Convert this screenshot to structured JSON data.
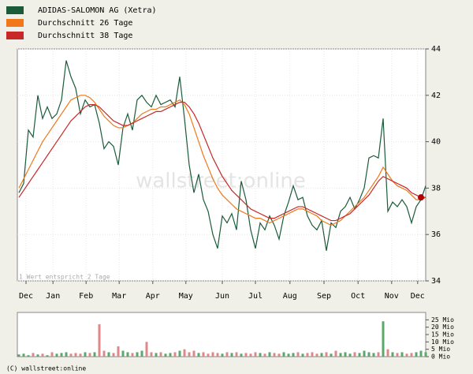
{
  "chart_data": [
    {
      "type": "line",
      "watermark": "wallstreet:online",
      "note": "1 Wert entspricht 2 Tage",
      "copyright": "(C) wallstreet:online",
      "xlim": [
        0,
        86
      ],
      "xticks": [
        {
          "value": 1.5,
          "label": "Dec"
        },
        {
          "value": 7.2,
          "label": "Jan"
        },
        {
          "value": 14.2,
          "label": "Feb"
        },
        {
          "value": 21.2,
          "label": "Mar"
        },
        {
          "value": 28.3,
          "label": "Apr"
        },
        {
          "value": 35.3,
          "label": "May"
        },
        {
          "value": 43,
          "label": "Jun"
        },
        {
          "value": 50,
          "label": "Jul"
        },
        {
          "value": 57.3,
          "label": "Aug"
        },
        {
          "value": 64.5,
          "label": "Sep"
        },
        {
          "value": 71.7,
          "label": "Oct"
        },
        {
          "value": 78.8,
          "label": "Nov"
        },
        {
          "value": 84.3,
          "label": "Dec"
        }
      ],
      "ylim": [
        34,
        44
      ],
      "yticks": [
        34,
        36,
        38,
        40,
        42,
        44
      ],
      "grid": true,
      "series": [
        {
          "name": "ADIDAS-SALOMON AG (Xetra)",
          "color": "#1a5c3a",
          "values": [
            37.8,
            38.2,
            40.5,
            40.2,
            42.0,
            41.0,
            41.5,
            41.0,
            41.2,
            41.8,
            43.5,
            42.8,
            42.3,
            41.2,
            41.8,
            41.5,
            41.6,
            40.8,
            39.7,
            40.0,
            39.8,
            39.0,
            40.6,
            41.2,
            40.5,
            41.8,
            42.0,
            41.7,
            41.5,
            42.0,
            41.6,
            41.7,
            41.8,
            41.5,
            42.8,
            41.0,
            39.0,
            37.8,
            38.6,
            37.5,
            37.0,
            36.0,
            35.4,
            36.8,
            36.5,
            36.9,
            36.2,
            38.3,
            37.5,
            36.2,
            35.4,
            36.5,
            36.2,
            36.8,
            36.4,
            35.8,
            36.8,
            37.4,
            38.1,
            37.5,
            37.6,
            36.8,
            36.4,
            36.2,
            36.6,
            35.3,
            36.5,
            36.3,
            37.0,
            37.2,
            37.6,
            37.1,
            37.5,
            38.0,
            39.3,
            39.4,
            39.3,
            41.0,
            37.0,
            37.4,
            37.2,
            37.5,
            37.2,
            36.5,
            37.2,
            37.5,
            38.1
          ]
        },
        {
          "name": "Durchschnitt 26 Tage",
          "color": "#f07818",
          "values": [
            38.0,
            38.4,
            38.8,
            39.2,
            39.6,
            40.0,
            40.3,
            40.6,
            40.9,
            41.2,
            41.5,
            41.8,
            41.9,
            42.0,
            42.0,
            41.9,
            41.7,
            41.4,
            41.1,
            40.9,
            40.7,
            40.6,
            40.6,
            40.7,
            40.8,
            41.0,
            41.2,
            41.3,
            41.4,
            41.4,
            41.5,
            41.5,
            41.6,
            41.7,
            41.8,
            41.6,
            41.2,
            40.6,
            40.0,
            39.4,
            38.9,
            38.4,
            38.0,
            37.7,
            37.5,
            37.3,
            37.1,
            37.0,
            36.9,
            36.8,
            36.7,
            36.7,
            36.6,
            36.5,
            36.6,
            36.7,
            36.8,
            36.9,
            37.0,
            37.1,
            37.1,
            37.0,
            36.9,
            36.8,
            36.6,
            36.5,
            36.4,
            36.5,
            36.6,
            36.8,
            37.0,
            37.2,
            37.4,
            37.6,
            37.9,
            38.2,
            38.5,
            38.9,
            38.6,
            38.3,
            38.1,
            38.0,
            37.9,
            37.7,
            37.5,
            37.5,
            37.6
          ]
        },
        {
          "name": "Durchschnitt 38 Tage",
          "color": "#c82828",
          "values": [
            37.6,
            37.9,
            38.2,
            38.5,
            38.8,
            39.1,
            39.4,
            39.7,
            40.0,
            40.3,
            40.6,
            40.9,
            41.1,
            41.3,
            41.5,
            41.6,
            41.6,
            41.5,
            41.3,
            41.1,
            40.9,
            40.8,
            40.7,
            40.7,
            40.8,
            40.9,
            41.0,
            41.1,
            41.2,
            41.3,
            41.3,
            41.4,
            41.5,
            41.6,
            41.7,
            41.7,
            41.5,
            41.2,
            40.8,
            40.3,
            39.8,
            39.3,
            38.9,
            38.5,
            38.2,
            37.9,
            37.7,
            37.5,
            37.3,
            37.1,
            37.0,
            36.9,
            36.8,
            36.7,
            36.7,
            36.8,
            36.9,
            37.0,
            37.1,
            37.2,
            37.2,
            37.1,
            37.0,
            36.9,
            36.8,
            36.7,
            36.6,
            36.6,
            36.7,
            36.8,
            36.9,
            37.1,
            37.3,
            37.5,
            37.7,
            38.0,
            38.3,
            38.5,
            38.4,
            38.3,
            38.2,
            38.1,
            38.0,
            37.8,
            37.7,
            37.6,
            37.6
          ]
        }
      ]
    },
    {
      "type": "bar",
      "xlim": [
        0,
        86
      ],
      "ylim": [
        0,
        30
      ],
      "yticks": [
        {
          "value": 0,
          "label": "0 Mio"
        },
        {
          "value": 5,
          "label": "5 Mio"
        },
        {
          "value": 10,
          "label": "10 Mio"
        },
        {
          "value": 15,
          "label": "15 Mio"
        },
        {
          "value": 20,
          "label": "20 Mio"
        },
        {
          "value": 25,
          "label": "25 Mio"
        }
      ],
      "up_color": "#5aa86a",
      "down_color": "#e08888",
      "values": [
        1.5,
        2,
        1,
        2.5,
        1.5,
        2,
        1,
        3,
        2,
        2.5,
        3,
        2,
        2.5,
        2,
        3,
        2.5,
        3,
        22,
        4,
        3,
        2.5,
        7,
        4,
        3,
        2.5,
        3,
        4,
        10,
        3,
        2.5,
        3,
        2,
        2.5,
        3,
        4,
        5,
        3,
        4,
        2.5,
        3,
        2,
        3,
        2.5,
        2,
        3,
        2.5,
        3,
        2,
        2.5,
        2,
        3,
        2.5,
        2,
        3,
        2.5,
        2,
        3,
        2,
        2.5,
        3,
        2,
        2.5,
        3,
        2,
        2.5,
        3,
        2,
        4,
        2.5,
        3,
        2,
        3,
        2.5,
        4,
        3,
        2.5,
        3,
        24,
        5,
        3,
        2.5,
        3,
        2,
        2.5,
        3,
        4,
        3
      ]
    }
  ]
}
